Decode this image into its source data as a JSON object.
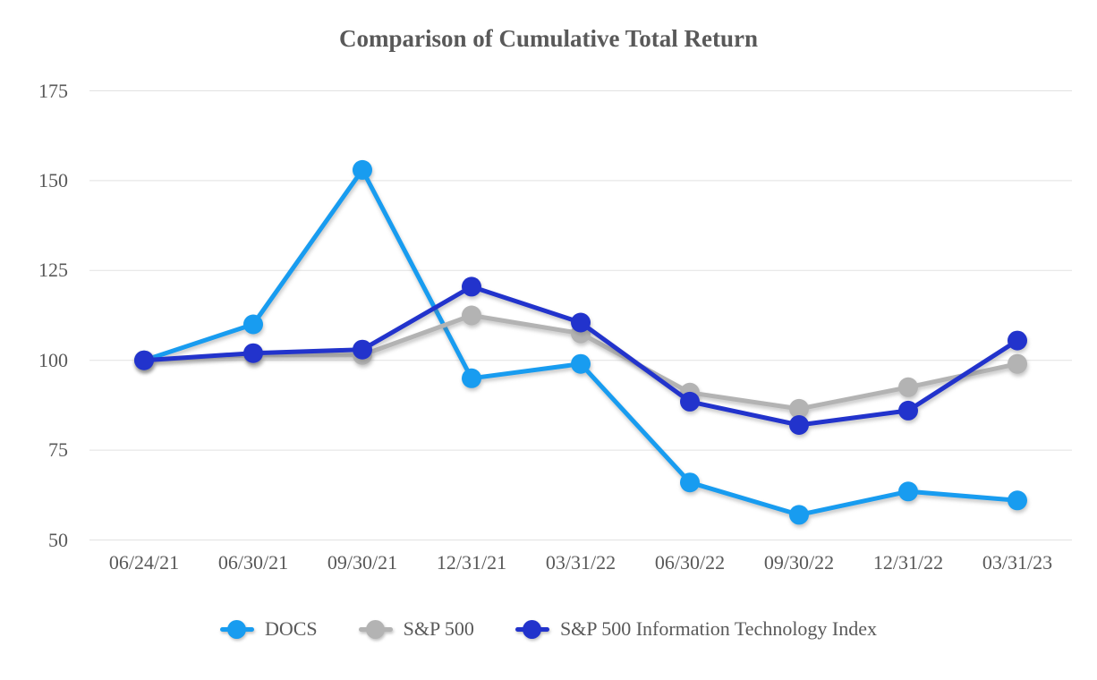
{
  "title": "Comparison of Cumulative Total Return",
  "chart_data": {
    "type": "line",
    "title": "Comparison of Cumulative Total Return",
    "categories": [
      "06/24/21",
      "06/30/21",
      "09/30/21",
      "12/31/21",
      "03/31/22",
      "06/30/22",
      "09/30/22",
      "12/31/22",
      "03/31/23"
    ],
    "series": [
      {
        "name": "DOCS",
        "color": "#189CF0",
        "values": [
          100,
          110,
          153,
          95,
          99,
          66,
          57,
          63.5,
          61
        ]
      },
      {
        "name": "S&P 500",
        "color": "#B3B3B3",
        "values": [
          100,
          101.5,
          101.5,
          112.5,
          107.5,
          91,
          86.5,
          92.5,
          99
        ]
      },
      {
        "name": "S&P 500 Information Technology Index",
        "color": "#2233CC",
        "values": [
          100,
          102,
          103,
          120.5,
          110.5,
          88.5,
          82,
          86,
          105.5
        ]
      }
    ],
    "y_axis": {
      "ticks": [
        175,
        150,
        125,
        100,
        75,
        50
      ],
      "min": 50,
      "max": 175
    },
    "x_axis": {
      "label": ""
    },
    "grid": true,
    "gridline_color": "#E2E2E2",
    "text_color": "#595959",
    "legend_position": "bottom"
  }
}
